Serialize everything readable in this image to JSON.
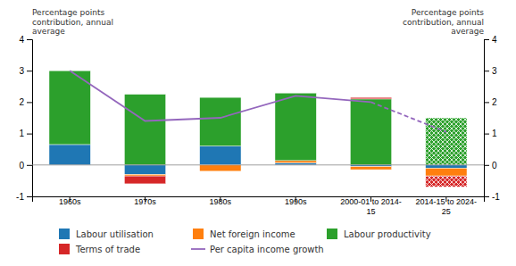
{
  "chart_data": {
    "type": "bar",
    "stacked": true,
    "categories": [
      "1960s",
      "1970s",
      "1980s",
      "1990s",
      "2000-01 to 2014-\n15",
      "2014-15 to 2024-\n25"
    ],
    "series": [
      {
        "name": "Labour utilisation",
        "values": [
          0.65,
          -0.3,
          0.6,
          0.07,
          -0.05,
          -0.1
        ]
      },
      {
        "name": "Net foreign income",
        "values": [
          0.0,
          -0.05,
          -0.2,
          0.07,
          -0.1,
          -0.25
        ]
      },
      {
        "name": "Labour productivity",
        "values": [
          2.35,
          2.25,
          1.55,
          2.15,
          2.1,
          1.5
        ]
      },
      {
        "name": "Terms of trade",
        "values": [
          0.0,
          -0.25,
          0.0,
          0.0,
          0.05,
          -0.35
        ]
      },
      {
        "name": "Per capita income growth",
        "type": "line",
        "values": [
          3.0,
          1.4,
          1.5,
          2.2,
          2.0,
          1.05
        ]
      }
    ],
    "ylabel": "Percentage points\ncontribution, annual\naverage",
    "y2label": "Percentage points\ncontribution, annual\naverage",
    "ylim": [
      -1,
      4
    ],
    "yticks": [
      -1,
      0,
      1,
      2,
      3,
      4
    ],
    "y2lim": [
      -1,
      4
    ],
    "y2ticks": [
      -1,
      0,
      1,
      2,
      3,
      4
    ],
    "grid": false,
    "legend": "bottom"
  }
}
